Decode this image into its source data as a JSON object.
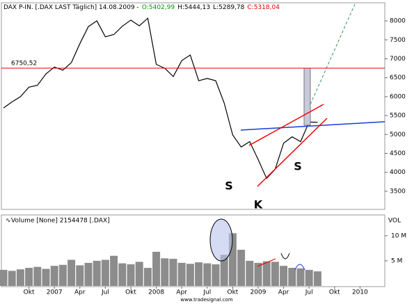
{
  "chart_data": [
    {
      "type": "line",
      "title_parts": [
        {
          "text": "DAX P-IN. [.DAX LAST Täglich] 14.08.2009 -",
          "color": "#000000"
        },
        {
          "text": "O:5402,99",
          "color": "#009900"
        },
        {
          "text": "H:5444,13",
          "color": "#000000"
        },
        {
          "text": "L:5289,78",
          "color": "#000000"
        },
        {
          "text": "C:5318,04",
          "color": "#dd0000"
        }
      ],
      "categories": [
        null,
        null,
        null,
        "Okt",
        null,
        null,
        "2007",
        null,
        null,
        "Apr",
        null,
        null,
        "Jul",
        null,
        null,
        "Okt",
        null,
        null,
        "2008",
        null,
        null,
        "Apr",
        null,
        null,
        "Jul",
        null,
        null,
        "Okt",
        null,
        null,
        "2009",
        null,
        null,
        "Apr",
        null,
        null,
        "Jul",
        null,
        null,
        "Okt",
        null,
        null,
        "2010",
        null,
        null
      ],
      "values": [
        5700,
        5860,
        6000,
        6250,
        6300,
        6600,
        6780,
        6700,
        6900,
        7400,
        7850,
        8000,
        7580,
        7640,
        7860,
        8020,
        7870,
        8070,
        6850,
        6750,
        6530,
        6950,
        7100,
        6420,
        6480,
        6420,
        5830,
        4990,
        4670,
        4810,
        4340,
        3840,
        4080,
        4770,
        4940,
        4810,
        5330,
        5320,
        null,
        null,
        null,
        null,
        null,
        null,
        null
      ],
      "color": "#000000",
      "ylim": [
        3040,
        8460
      ],
      "yticks": [
        3500,
        4000,
        4500,
        5000,
        5500,
        6000,
        6500,
        7000,
        7500,
        8000
      ],
      "reference_line": {
        "value": 6750.52,
        "label": "6750,52",
        "color": "#dd0000"
      },
      "annotations": [
        "S",
        "K",
        "S"
      ]
    },
    {
      "type": "bar",
      "title": "Volume [None] 2154478 [.DAX]",
      "axis_label": "VOL",
      "values": [
        3200000,
        3000000,
        3300000,
        3600000,
        3800000,
        3400000,
        4000000,
        4200000,
        5200000,
        4100000,
        4600000,
        5000000,
        5200000,
        6000000,
        4500000,
        4300000,
        4800000,
        3600000,
        6800000,
        5500000,
        5400000,
        4600000,
        4400000,
        4700000,
        4500000,
        4300000,
        6200000,
        10500000,
        7200000,
        5000000,
        4600000,
        4900000,
        4800000,
        4000000,
        3600000,
        3500000,
        3200000,
        2900000,
        null,
        null,
        null,
        null,
        null,
        null,
        null
      ],
      "color": "#8c8c8c",
      "ylim": [
        0,
        14000000
      ],
      "yticks": [
        {
          "value": 5000000,
          "label": "5 M"
        },
        {
          "value": 10000000,
          "label": "10 M"
        }
      ]
    },
    {
      "type": "footer",
      "text": "www.tradesignal.com"
    }
  ]
}
